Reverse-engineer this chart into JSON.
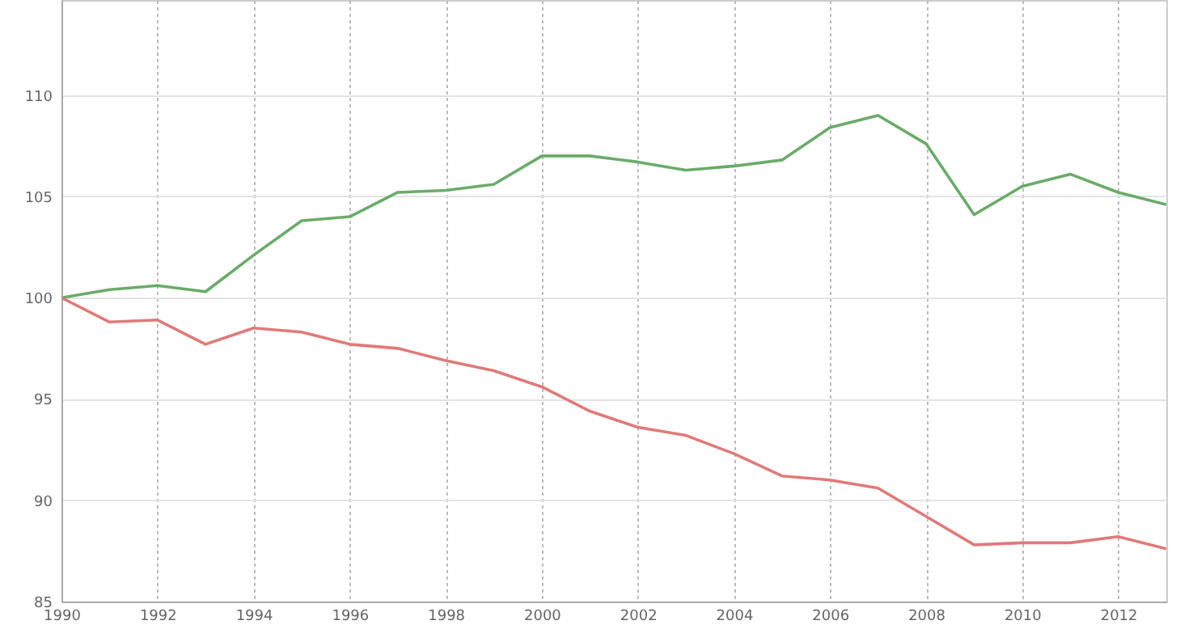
{
  "chart_data": {
    "type": "line",
    "x": [
      1990,
      1991,
      1992,
      1993,
      1994,
      1995,
      1996,
      1997,
      1998,
      1999,
      2000,
      2001,
      2002,
      2003,
      2004,
      2005,
      2006,
      2007,
      2008,
      2009,
      2010,
      2011,
      2012,
      2013
    ],
    "series": [
      {
        "color": "#6aab6a",
        "values": [
          100.0,
          100.4,
          100.6,
          100.3,
          102.1,
          103.8,
          104.0,
          105.2,
          105.3,
          105.6,
          107.0,
          107.0,
          106.7,
          106.3,
          106.5,
          106.8,
          108.4,
          109.0,
          107.6,
          104.1,
          105.5,
          106.1,
          105.2,
          104.6
        ]
      },
      {
        "color": "#e07a7a",
        "values": [
          100.0,
          98.8,
          98.9,
          97.7,
          98.5,
          98.3,
          97.7,
          97.5,
          96.9,
          96.4,
          95.6,
          94.4,
          93.6,
          93.2,
          92.3,
          91.2,
          91.0,
          90.6,
          89.2,
          87.8,
          87.9,
          87.9,
          88.2,
          87.6
        ]
      }
    ],
    "xlim": [
      1990,
      2013
    ],
    "xticks": [
      1990,
      1992,
      1994,
      1996,
      1998,
      2000,
      2002,
      2004,
      2006,
      2008,
      2010,
      2012
    ],
    "ylim": [
      85,
      114.7
    ],
    "yticks": [
      85,
      90,
      95,
      100,
      105,
      110
    ],
    "grid": true,
    "marker": "none",
    "line_style": "solid"
  }
}
